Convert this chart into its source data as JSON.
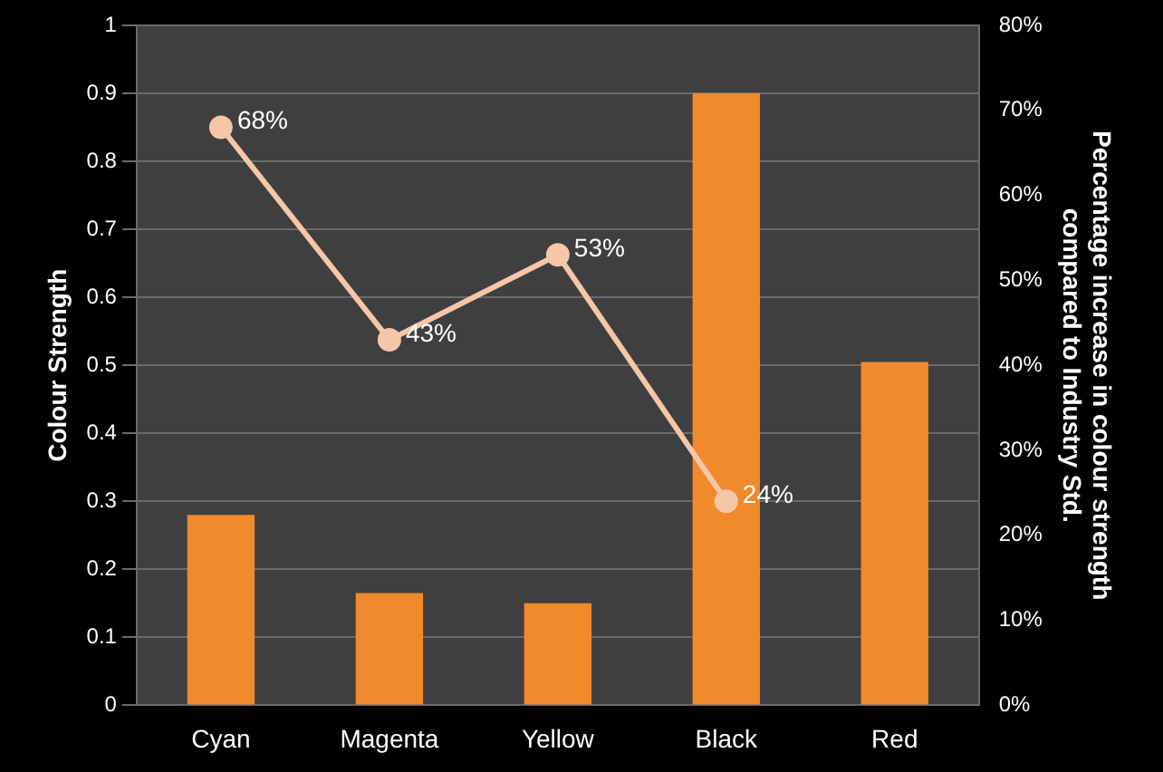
{
  "chart_data": {
    "type": "bar",
    "categories": [
      "Cyan",
      "Magenta",
      "Yellow",
      "Black",
      "Red"
    ],
    "ylabel": "Colour Strength",
    "y2label": "Percentage increase in colour strength compared to Industry Std.",
    "series": [
      {
        "color": "#f08a2c",
        "values": [
          0.28,
          0.165,
          0.15,
          0.9,
          0.505
        ]
      },
      {
        "type": "line",
        "axis": "y2",
        "color": "#f5c6a8",
        "values": [
          68,
          43,
          53,
          24,
          null
        ],
        "value_labels": [
          "68%",
          "43%",
          "53%",
          "24%",
          null
        ]
      }
    ],
    "ylim": [
      0,
      1
    ],
    "yticks": [
      0,
      0.1,
      0.2,
      0.3,
      0.4,
      0.5,
      0.6,
      0.7,
      0.8,
      0.9,
      1
    ],
    "y2lim": [
      0,
      80
    ],
    "y2ticks": [
      {
        "value": 0,
        "label": "0%"
      },
      {
        "value": 10,
        "label": "10%"
      },
      {
        "value": 20,
        "label": "20%"
      },
      {
        "value": 30,
        "label": "30%"
      },
      {
        "value": 40,
        "label": "40%"
      },
      {
        "value": 50,
        "label": "50%"
      },
      {
        "value": 60,
        "label": "60%"
      },
      {
        "value": 70,
        "label": "70%"
      },
      {
        "value": 80,
        "label": "80%"
      }
    ],
    "grid": "y",
    "legend": false,
    "marker": "circle",
    "line_style": "solid"
  }
}
